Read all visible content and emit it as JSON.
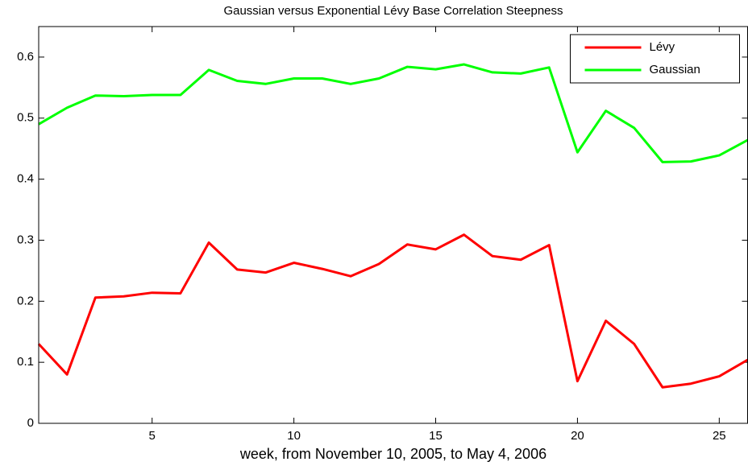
{
  "chart_data": {
    "type": "line",
    "title": "Gaussian versus Exponential Lévy Base Correlation Steepness",
    "x_label": "week, from November 10, 2005, to May 4, 2006",
    "x": [
      1,
      2,
      3,
      4,
      5,
      6,
      7,
      8,
      9,
      10,
      11,
      12,
      13,
      14,
      15,
      16,
      17,
      18,
      19,
      20,
      21,
      22,
      23,
      24,
      25,
      26
    ],
    "series": [
      {
        "name": "Lévy",
        "color": "#ff0000",
        "values": [
          0.13,
          0.08,
          0.206,
          0.208,
          0.214,
          0.213,
          0.296,
          0.252,
          0.247,
          0.263,
          0.253,
          0.241,
          0.261,
          0.293,
          0.285,
          0.309,
          0.274,
          0.268,
          0.292,
          0.069,
          0.168,
          0.13,
          0.059,
          0.065,
          0.077,
          0.104
        ]
      },
      {
        "name": "Gaussian",
        "color": "#00ff00",
        "values": [
          0.49,
          0.517,
          0.537,
          0.536,
          0.538,
          0.538,
          0.579,
          0.561,
          0.556,
          0.565,
          0.565,
          0.556,
          0.565,
          0.584,
          0.58,
          0.588,
          0.575,
          0.573,
          0.583,
          0.444,
          0.512,
          0.484,
          0.428,
          0.429,
          0.439,
          0.464
        ]
      }
    ],
    "xlim": [
      1,
      26
    ],
    "xticks": [
      5,
      10,
      15,
      20,
      25
    ],
    "ylim": [
      0,
      0.65
    ],
    "yticks": [
      0,
      0.1,
      0.2,
      0.3,
      0.4,
      0.5,
      0.6
    ],
    "legend": "northeast"
  }
}
